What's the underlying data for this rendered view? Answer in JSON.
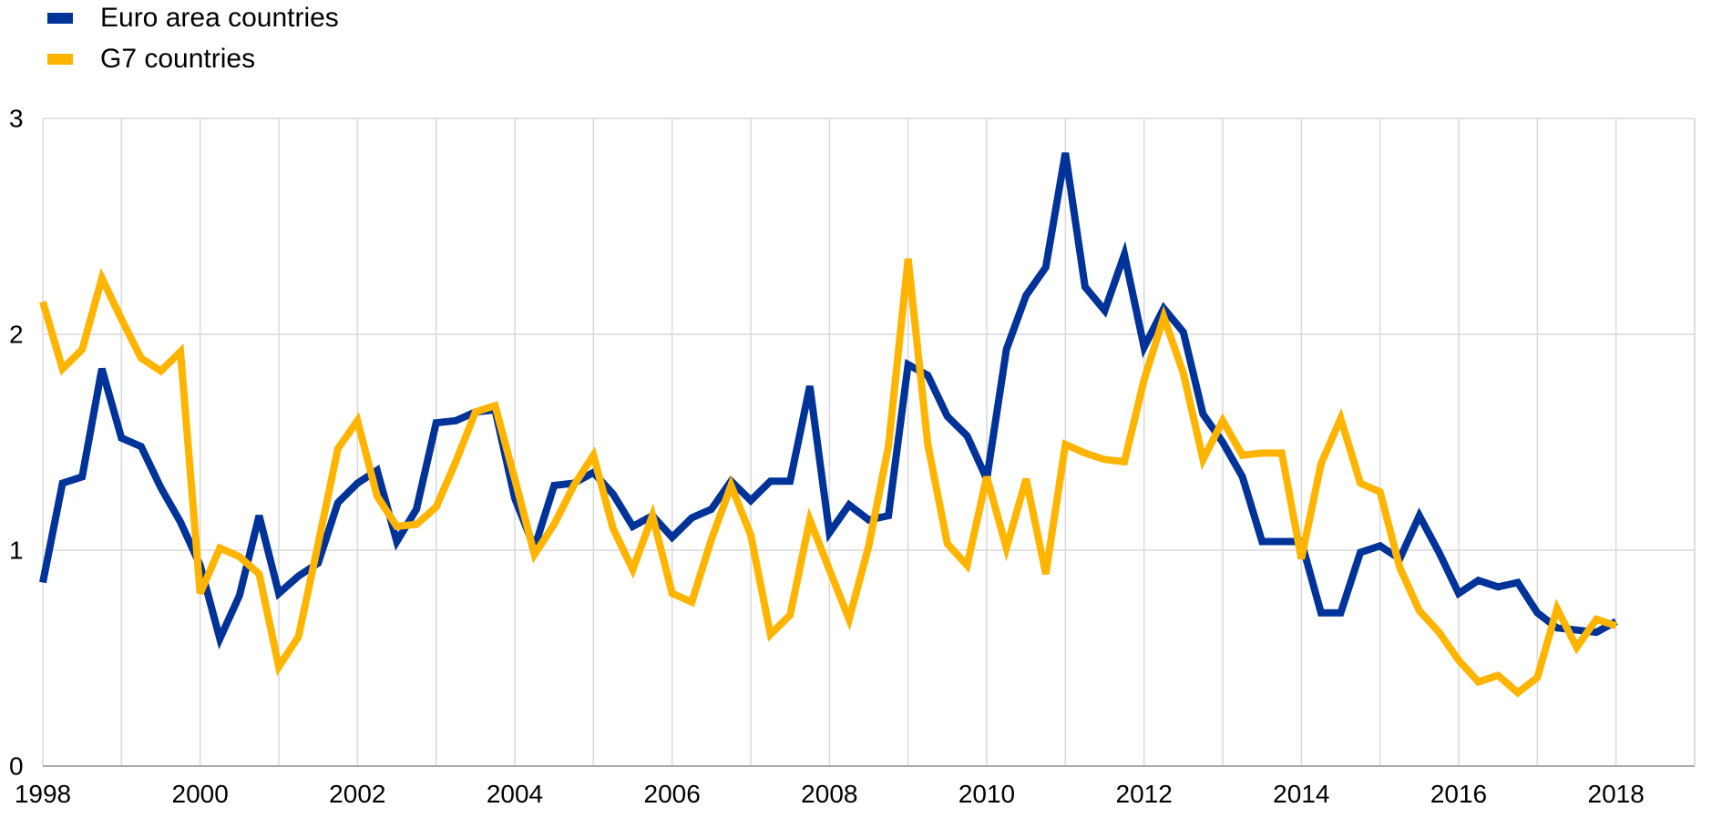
{
  "chart_data": {
    "type": "line",
    "title": "",
    "xlabel": "",
    "ylabel": "",
    "xlim": [
      1998,
      2019
    ],
    "ylim": [
      0,
      3
    ],
    "x_ticks": [
      "1998",
      "2000",
      "2002",
      "2004",
      "2006",
      "2008",
      "2010",
      "2012",
      "2014",
      "2016",
      "2018"
    ],
    "y_ticks": [
      "0",
      "1",
      "2",
      "3"
    ],
    "grid": true,
    "legend_position": "top-left",
    "x": [
      1998.0,
      1998.25,
      1998.5,
      1998.75,
      1999.0,
      1999.25,
      1999.5,
      1999.75,
      2000.0,
      2000.25,
      2000.5,
      2000.75,
      2001.0,
      2001.25,
      2001.5,
      2001.75,
      2002.0,
      2002.25,
      2002.5,
      2002.75,
      2003.0,
      2003.25,
      2003.5,
      2003.75,
      2004.0,
      2004.25,
      2004.5,
      2004.75,
      2005.0,
      2005.25,
      2005.5,
      2005.75,
      2006.0,
      2006.25,
      2006.5,
      2006.75,
      2007.0,
      2007.25,
      2007.5,
      2007.75,
      2008.0,
      2008.25,
      2008.5,
      2008.75,
      2009.0,
      2009.25,
      2009.5,
      2009.75,
      2010.0,
      2010.25,
      2010.5,
      2010.75,
      2011.0,
      2011.25,
      2011.5,
      2011.75,
      2012.0,
      2012.25,
      2012.5,
      2012.75,
      2013.0,
      2013.25,
      2013.5,
      2013.75,
      2014.0,
      2014.25,
      2014.5,
      2014.75,
      2015.0,
      2015.25,
      2015.5,
      2015.75,
      2016.0,
      2016.25,
      2016.5,
      2016.75,
      2017.0,
      2017.25,
      2017.5,
      2017.75,
      2018.0
    ],
    "series": [
      {
        "name": "Euro area countries",
        "color": "#003399",
        "values": [
          0.85,
          1.31,
          1.34,
          1.84,
          1.52,
          1.48,
          1.29,
          1.13,
          0.93,
          0.59,
          0.79,
          1.16,
          0.8,
          0.88,
          0.94,
          1.22,
          1.31,
          1.37,
          1.04,
          1.19,
          1.59,
          1.6,
          1.64,
          1.65,
          1.24,
          1.01,
          1.3,
          1.31,
          1.36,
          1.26,
          1.11,
          1.16,
          1.06,
          1.15,
          1.19,
          1.32,
          1.23,
          1.32,
          1.32,
          1.76,
          1.08,
          1.21,
          1.14,
          1.16,
          1.86,
          1.81,
          1.62,
          1.53,
          1.33,
          1.93,
          2.18,
          2.31,
          2.84,
          2.22,
          2.11,
          2.37,
          1.94,
          2.12,
          2.01,
          1.63,
          1.5,
          1.34,
          1.04,
          1.04,
          1.04,
          0.71,
          0.71,
          0.99,
          1.02,
          0.96,
          1.16,
          0.99,
          0.8,
          0.86,
          0.83,
          0.85,
          0.71,
          0.64,
          0.63,
          0.62,
          0.67
        ]
      },
      {
        "name": "G7 countries",
        "color": "#FFB400",
        "values": [
          2.15,
          1.84,
          1.93,
          2.26,
          2.07,
          1.89,
          1.83,
          1.92,
          0.8,
          1.01,
          0.97,
          0.89,
          0.46,
          0.6,
          1.03,
          1.47,
          1.6,
          1.25,
          1.11,
          1.12,
          1.2,
          1.41,
          1.64,
          1.67,
          1.33,
          0.98,
          1.12,
          1.3,
          1.44,
          1.1,
          0.91,
          1.16,
          0.8,
          0.76,
          1.05,
          1.3,
          1.07,
          0.61,
          0.7,
          1.14,
          0.91,
          0.68,
          1.02,
          1.48,
          2.35,
          1.49,
          1.03,
          0.93,
          1.34,
          1.01,
          1.33,
          0.89,
          1.49,
          1.45,
          1.42,
          1.41,
          1.79,
          2.08,
          1.82,
          1.42,
          1.6,
          1.44,
          1.45,
          1.45,
          0.96,
          1.4,
          1.61,
          1.31,
          1.27,
          0.92,
          0.72,
          0.62,
          0.49,
          0.39,
          0.42,
          0.34,
          0.41,
          0.73,
          0.55,
          0.68,
          0.65
        ]
      }
    ]
  }
}
